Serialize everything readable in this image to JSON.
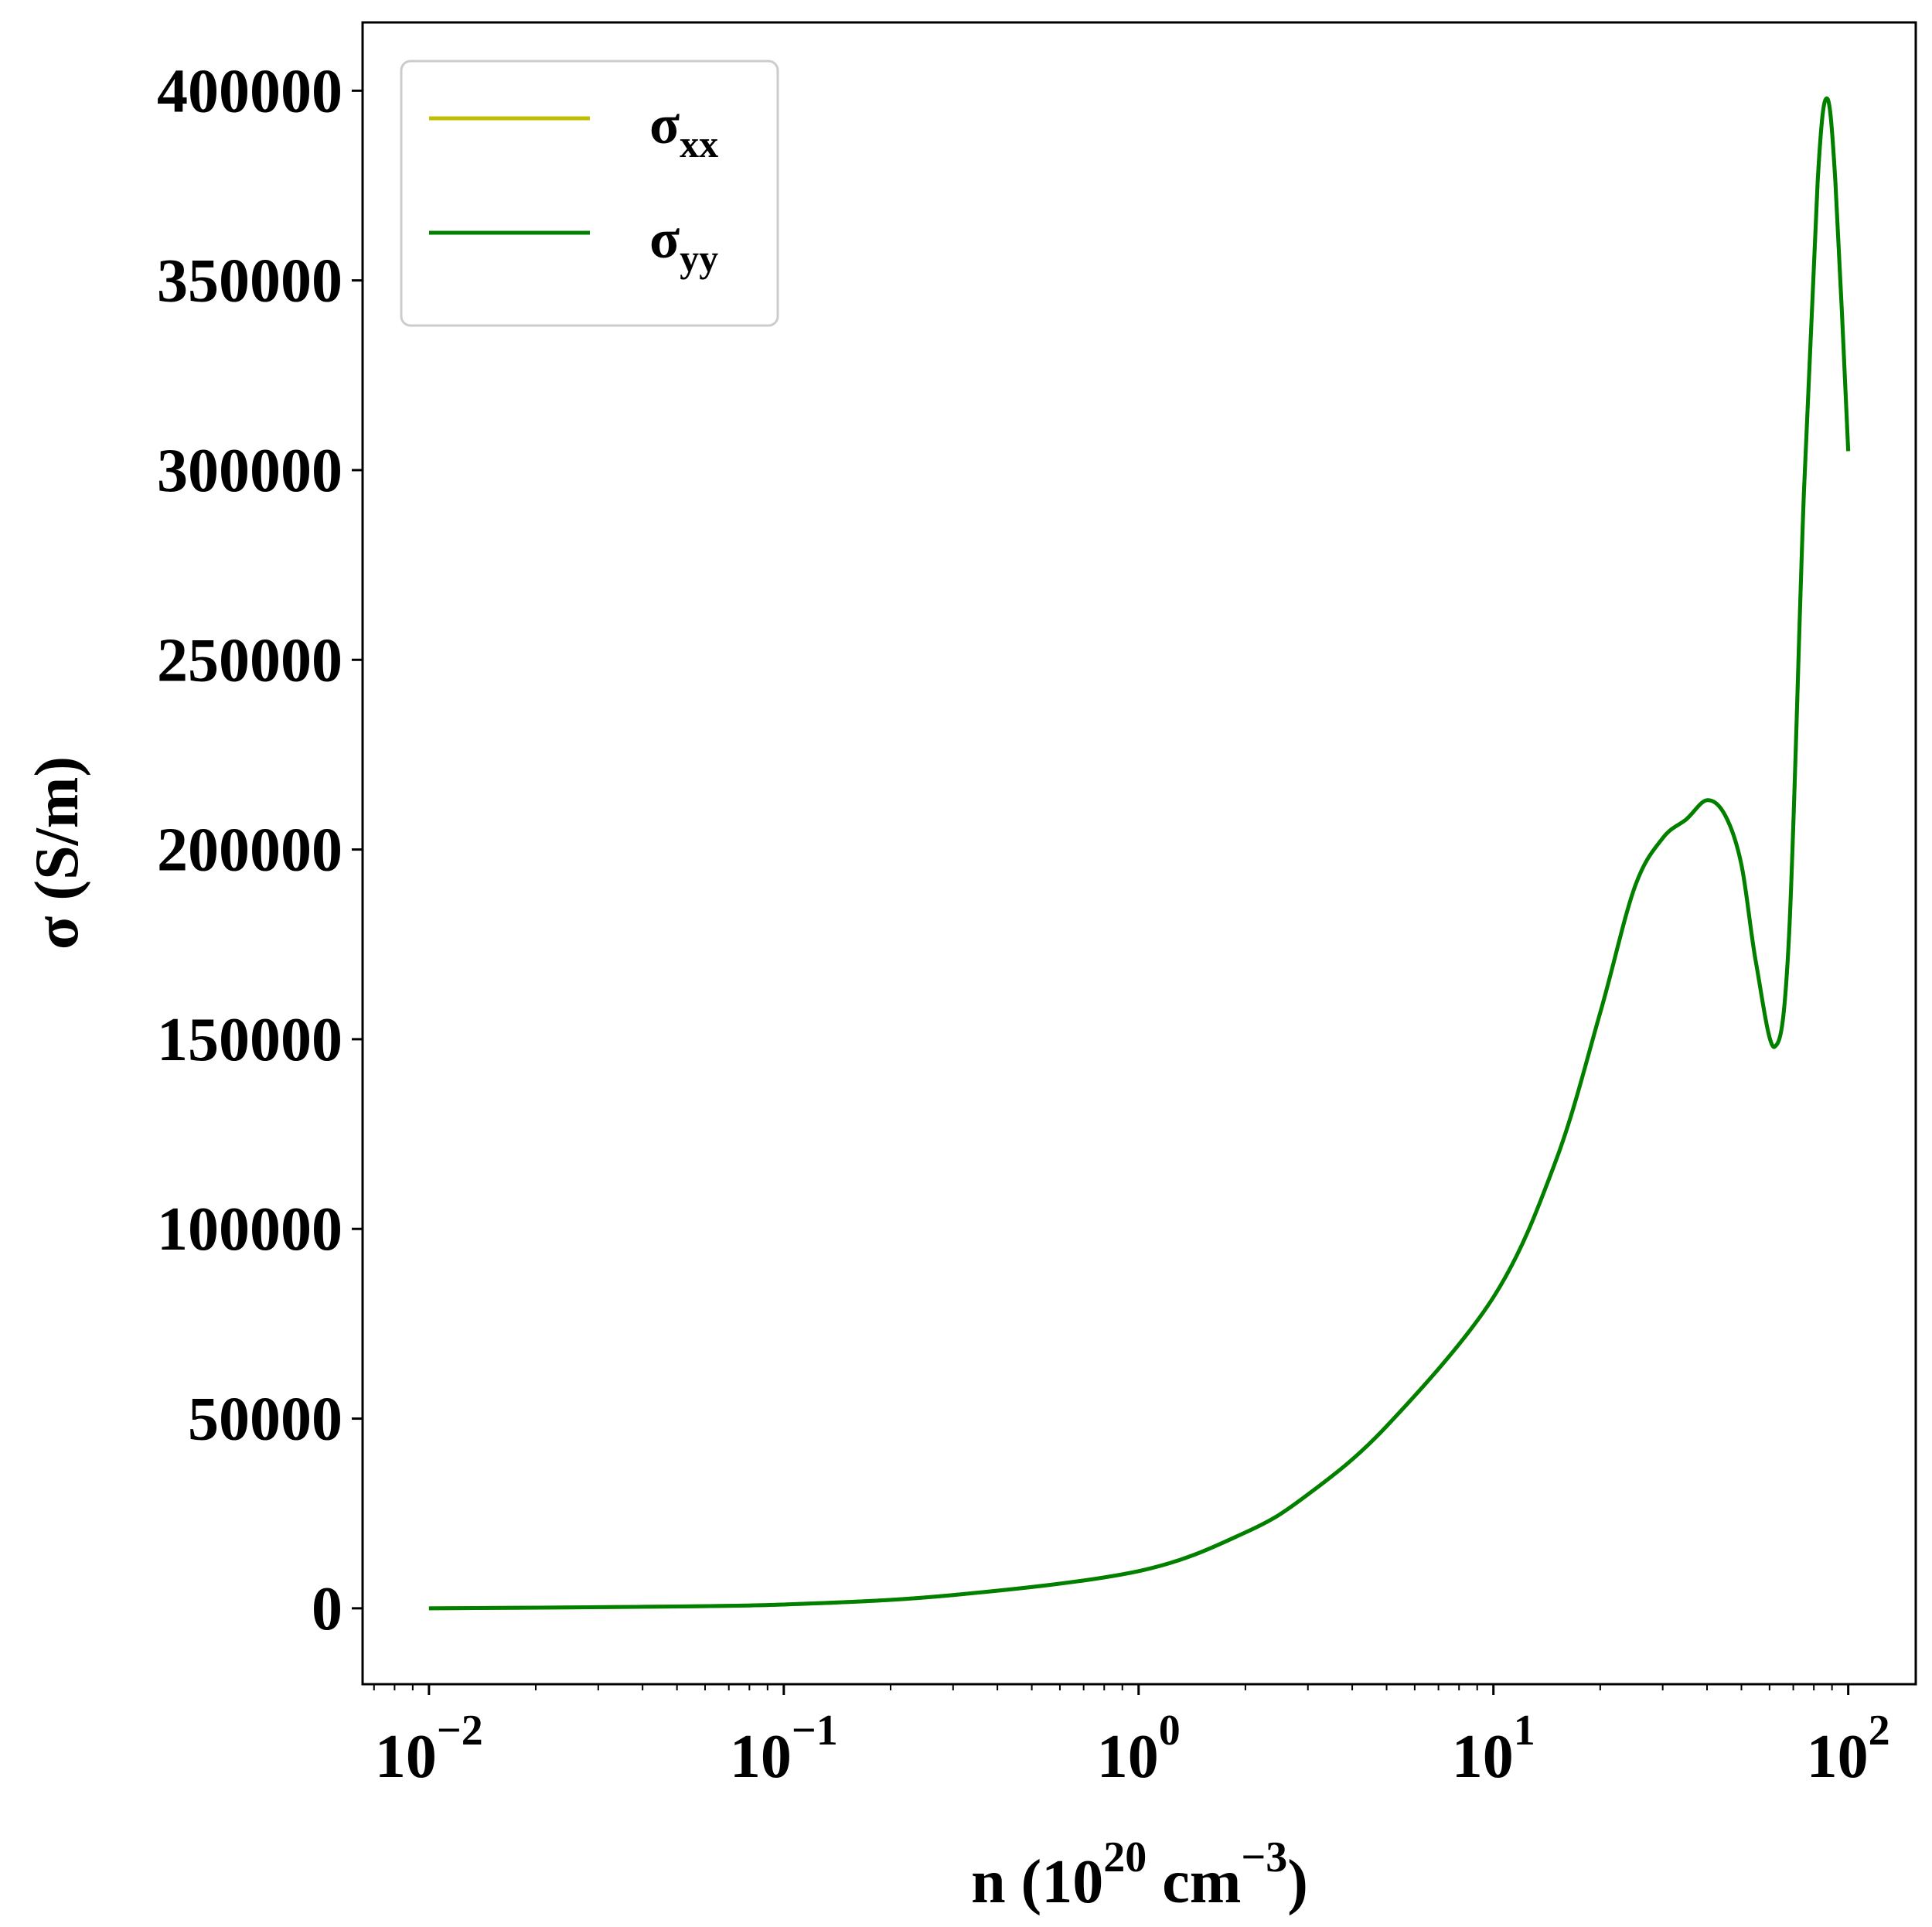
{
  "chart_data": {
    "type": "line",
    "title": "",
    "xlabel": {
      "base": "n (10",
      "sup1": "20",
      "mid": " cm",
      "sup2": "−3",
      "end": ")"
    },
    "ylabel": "σ (S/m)",
    "xscale": "log",
    "xlim": [
      0.0065,
      155
    ],
    "ylim": [
      -20000,
      418000
    ],
    "grid": false,
    "legend_position": "top-left",
    "x_ticks": [
      {
        "value": 0.01,
        "base": "10",
        "exp": "−2"
      },
      {
        "value": 0.1,
        "base": "10",
        "exp": "−1"
      },
      {
        "value": 1,
        "base": "10",
        "exp": "0"
      },
      {
        "value": 10,
        "base": "10",
        "exp": "1"
      },
      {
        "value": 100,
        "base": "10",
        "exp": "2"
      }
    ],
    "y_ticks": [
      0,
      50000,
      100000,
      150000,
      200000,
      250000,
      300000,
      350000,
      400000
    ],
    "y_tick_labels": [
      "0",
      "50000",
      "100000",
      "150000",
      "200000",
      "250000",
      "300000",
      "350000",
      "400000"
    ],
    "x": [
      0.01,
      0.03,
      0.1,
      0.3,
      1,
      2,
      3,
      5,
      10,
      15,
      20,
      25,
      30,
      35,
      40,
      45,
      50,
      55,
      62,
      68,
      75,
      82,
      87,
      92,
      100
    ],
    "series": [
      {
        "name": "σxx",
        "label_main": "σ",
        "label_sub": "xx",
        "color": "#bfbf00",
        "values": [
          0,
          300,
          1000,
          3500,
          9800,
          20000,
          30000,
          48000,
          82000,
          118000,
          157000,
          190000,
          203000,
          208000,
          213000,
          209000,
          196000,
          170000,
          148000,
          176000,
          294000,
          376000,
          398000,
          376000,
          305000
        ]
      },
      {
        "name": "σyy",
        "label_main": "σ",
        "label_sub": "yy",
        "color": "#008000",
        "values": [
          0,
          300,
          1000,
          3500,
          9800,
          20000,
          30000,
          48000,
          82000,
          118000,
          157000,
          190000,
          203000,
          208000,
          213000,
          209000,
          196000,
          170000,
          148000,
          176000,
          294000,
          376000,
          398000,
          376000,
          305000
        ]
      }
    ]
  }
}
